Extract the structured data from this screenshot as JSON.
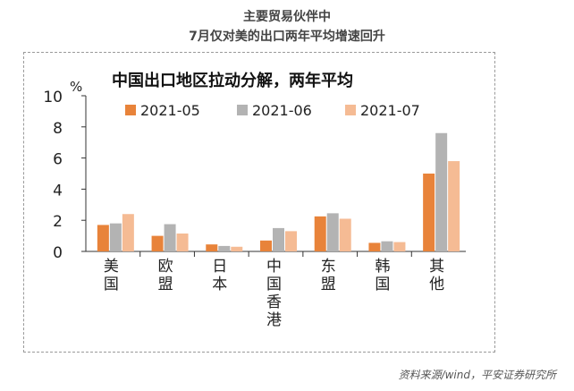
{
  "header": {
    "line1": "主要贸易伙伴中",
    "line2": "7月仅对美的出口两年平均增速回升"
  },
  "source": "资料来源/wind，平安证券研究所",
  "colors": {
    "s1": "#e8833a",
    "s2": "#b3b3b3",
    "s3": "#f5bb94"
  },
  "chart_data": {
    "type": "bar",
    "title": "中国出口地区拉动分解，两年平均",
    "ylabel": "%",
    "ylim": [
      0,
      10
    ],
    "yticks": [
      0,
      2,
      4,
      6,
      8,
      10
    ],
    "categories": [
      "美国",
      "欧盟",
      "日本",
      "中国香港",
      "东盟",
      "韩国",
      "其他"
    ],
    "legend_position": "top",
    "series": [
      {
        "name": "2021-05",
        "values": [
          1.7,
          1.0,
          0.45,
          0.7,
          2.25,
          0.55,
          5.0
        ]
      },
      {
        "name": "2021-06",
        "values": [
          1.8,
          1.75,
          0.35,
          1.5,
          2.45,
          0.65,
          7.6
        ]
      },
      {
        "name": "2021-07",
        "values": [
          2.4,
          1.15,
          0.3,
          1.3,
          2.1,
          0.6,
          5.8
        ]
      }
    ]
  }
}
